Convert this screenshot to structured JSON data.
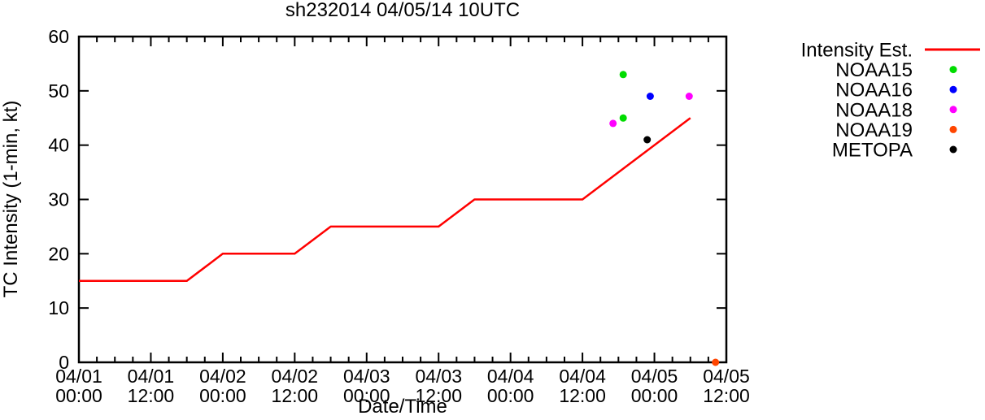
{
  "background": "#ffffff",
  "frame_color": "#000000",
  "chart_data": {
    "type": "line+scatter",
    "title": "sh232014 04/05/14 10UTC",
    "xlabel": "Date/Time",
    "ylabel": "TC Intensity (1-min, kt)",
    "grid": false,
    "legend_position": "right-top-outside",
    "x_axis": {
      "unit": "hours since 04/01 00:00",
      "range_hours": [
        0,
        108
      ],
      "minor_tick_step_hours": 3,
      "major_ticks": [
        {
          "hours": 0,
          "date": "04/01",
          "time": "00:00"
        },
        {
          "hours": 12,
          "date": "04/01",
          "time": "12:00"
        },
        {
          "hours": 24,
          "date": "04/02",
          "time": "00:00"
        },
        {
          "hours": 36,
          "date": "04/02",
          "time": "12:00"
        },
        {
          "hours": 48,
          "date": "04/03",
          "time": "00:00"
        },
        {
          "hours": 60,
          "date": "04/03",
          "time": "12:00"
        },
        {
          "hours": 72,
          "date": "04/04",
          "time": "00:00"
        },
        {
          "hours": 84,
          "date": "04/04",
          "time": "12:00"
        },
        {
          "hours": 96,
          "date": "04/05",
          "time": "00:00"
        },
        {
          "hours": 108,
          "date": "04/05",
          "time": "12:00"
        }
      ]
    },
    "y_axis": {
      "range": [
        0,
        60
      ],
      "ticks": [
        0,
        10,
        20,
        30,
        40,
        50,
        60
      ]
    },
    "series": [
      {
        "name": "Intensity Est.",
        "kind": "line",
        "color": "#ff0000",
        "legend_marker": "line",
        "points_h_kt": [
          [
            0,
            15
          ],
          [
            18,
            15
          ],
          [
            24,
            20
          ],
          [
            36,
            20
          ],
          [
            42,
            25
          ],
          [
            60,
            25
          ],
          [
            66,
            30
          ],
          [
            84,
            30
          ],
          [
            102,
            45
          ]
        ]
      },
      {
        "name": "NOAA15",
        "kind": "scatter",
        "color": "#00dc00",
        "legend_marker": "dot",
        "points_h_kt": [
          [
            90.8,
            53
          ],
          [
            90.8,
            45
          ]
        ]
      },
      {
        "name": "NOAA16",
        "kind": "scatter",
        "color": "#0000ff",
        "legend_marker": "dot",
        "points_h_kt": [
          [
            95.3,
            49
          ]
        ]
      },
      {
        "name": "NOAA18",
        "kind": "scatter",
        "color": "#ff00ff",
        "legend_marker": "dot",
        "points_h_kt": [
          [
            89.1,
            44
          ],
          [
            101.8,
            49
          ]
        ]
      },
      {
        "name": "NOAA19",
        "kind": "scatter",
        "color": "#ff4500",
        "legend_marker": "dot",
        "points_h_kt": [
          [
            106.2,
            0
          ]
        ]
      },
      {
        "name": "METOPA",
        "kind": "scatter",
        "color": "#000000",
        "legend_marker": "dot",
        "points_h_kt": [
          [
            94.8,
            41
          ]
        ]
      }
    ]
  }
}
